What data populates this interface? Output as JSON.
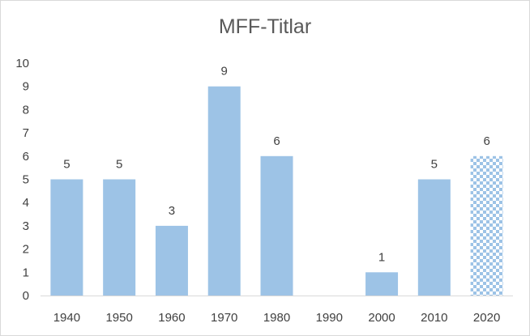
{
  "chart_data": {
    "type": "bar",
    "title": "MFF-Titlar",
    "categories": [
      "1940",
      "1950",
      "1960",
      "1970",
      "1980",
      "1990",
      "2000",
      "2010",
      "2020"
    ],
    "values": [
      5,
      5,
      3,
      9,
      6,
      0,
      1,
      5,
      6
    ],
    "data_labels": [
      "5",
      "5",
      "3",
      "9",
      "6",
      "",
      "1",
      "5",
      "6"
    ],
    "yticks": [
      0,
      1,
      2,
      3,
      4,
      5,
      6,
      7,
      8,
      9,
      10
    ],
    "ylim": [
      0,
      10
    ],
    "xlabel": "",
    "ylabel": "",
    "grid": false,
    "legend": "none",
    "bar_color": "#9dc3e6",
    "patterned_categories": [
      "2020"
    ],
    "pattern": "checkerboard"
  }
}
